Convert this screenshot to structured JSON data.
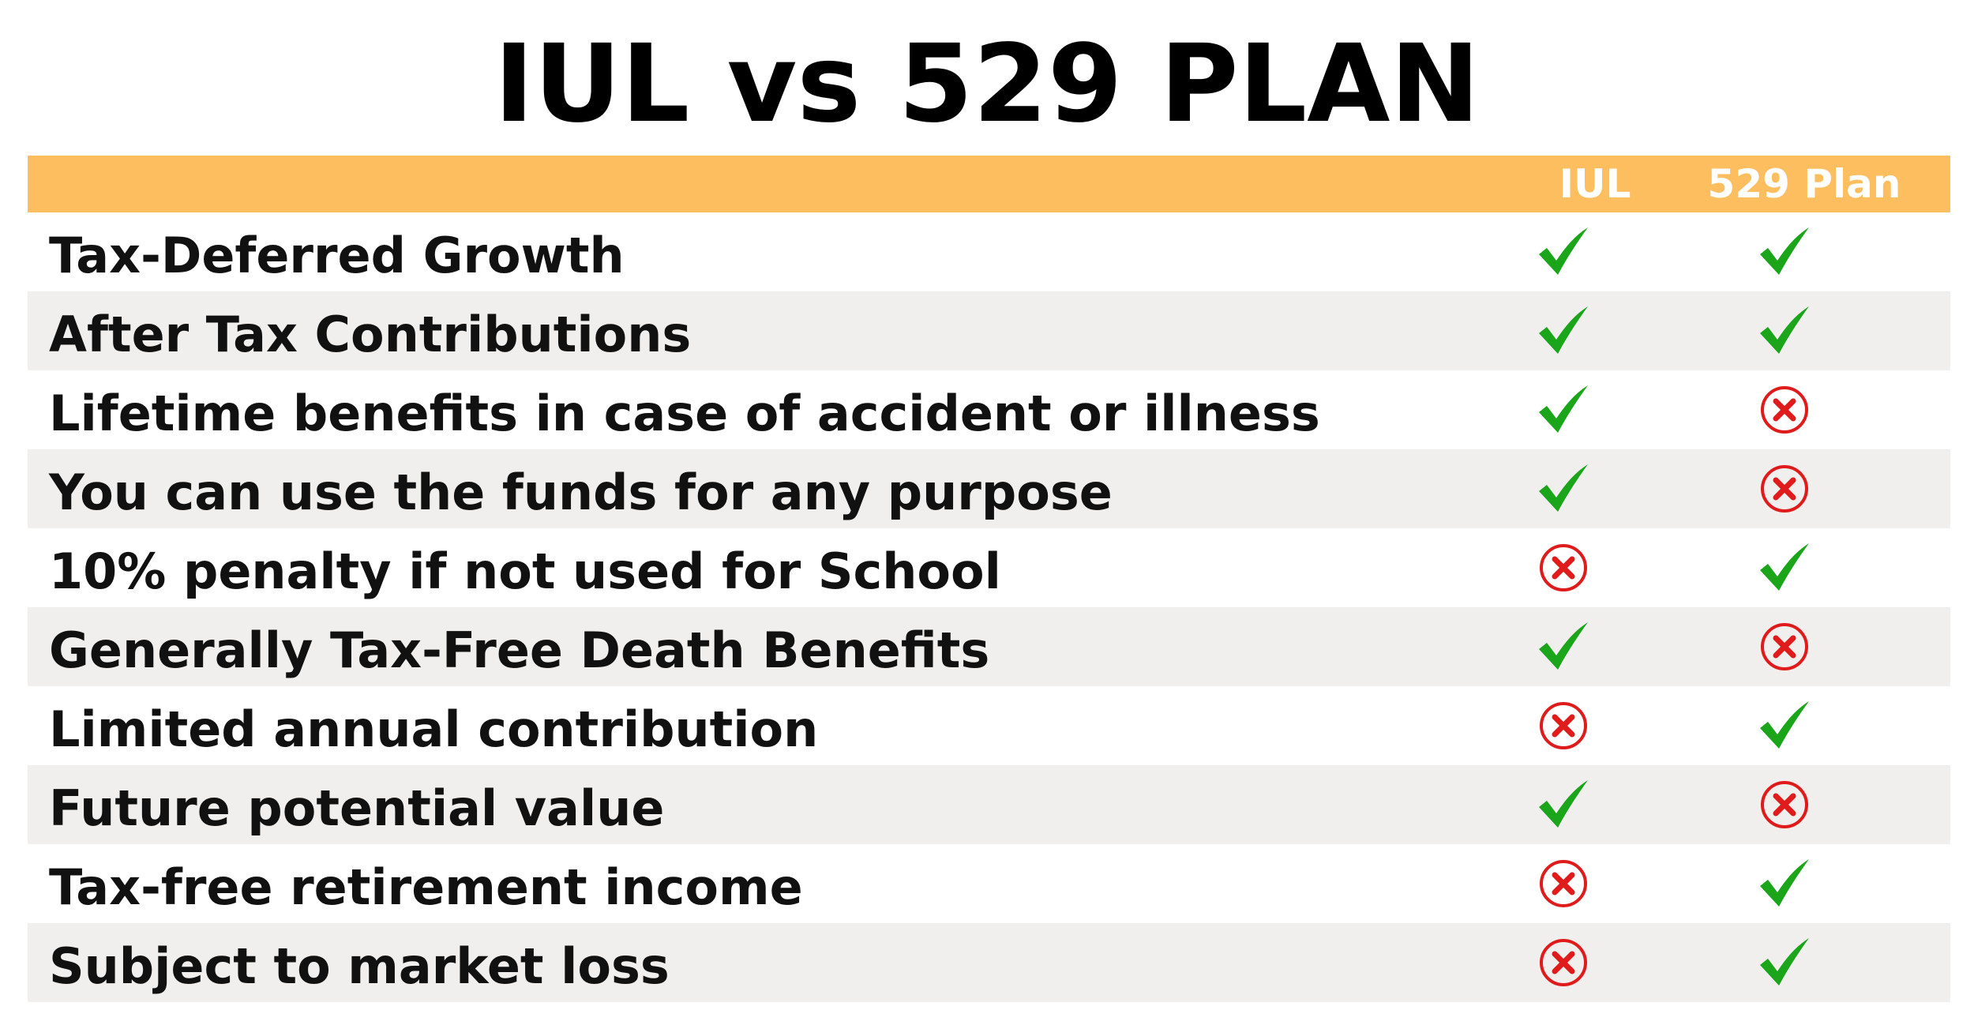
{
  "title": "IUL vs 529 PLAN",
  "columns": {
    "iul": "IUL",
    "plan529": "529 Plan"
  },
  "colors": {
    "header_bg": "#FDBE5F",
    "check": "#1AA51A",
    "cross": "#E01B1B",
    "row_alt": "#F0EFED"
  },
  "rows": [
    {
      "feature": "Tax-Deferred Growth",
      "iul": "check",
      "plan529": "check"
    },
    {
      "feature": "After Tax Contributions",
      "iul": "check",
      "plan529": "check"
    },
    {
      "feature": "Lifetime benefits in case of accident or illness",
      "iul": "check",
      "plan529": "cross"
    },
    {
      "feature": "You can use the funds for any purpose",
      "iul": "check",
      "plan529": "cross"
    },
    {
      "feature": "10% penalty if not used for School",
      "iul": "cross",
      "plan529": "check"
    },
    {
      "feature": "Generally Tax-Free Death Benefits",
      "iul": "check",
      "plan529": "cross"
    },
    {
      "feature": "Limited annual contribution",
      "iul": "cross",
      "plan529": "check"
    },
    {
      "feature": "Future potential value",
      "iul": "check",
      "plan529": "cross"
    },
    {
      "feature": "Tax-free retirement income",
      "iul": "cross",
      "plan529": "check"
    },
    {
      "feature": "Subject to market loss",
      "iul": "cross",
      "plan529": "check"
    }
  ]
}
